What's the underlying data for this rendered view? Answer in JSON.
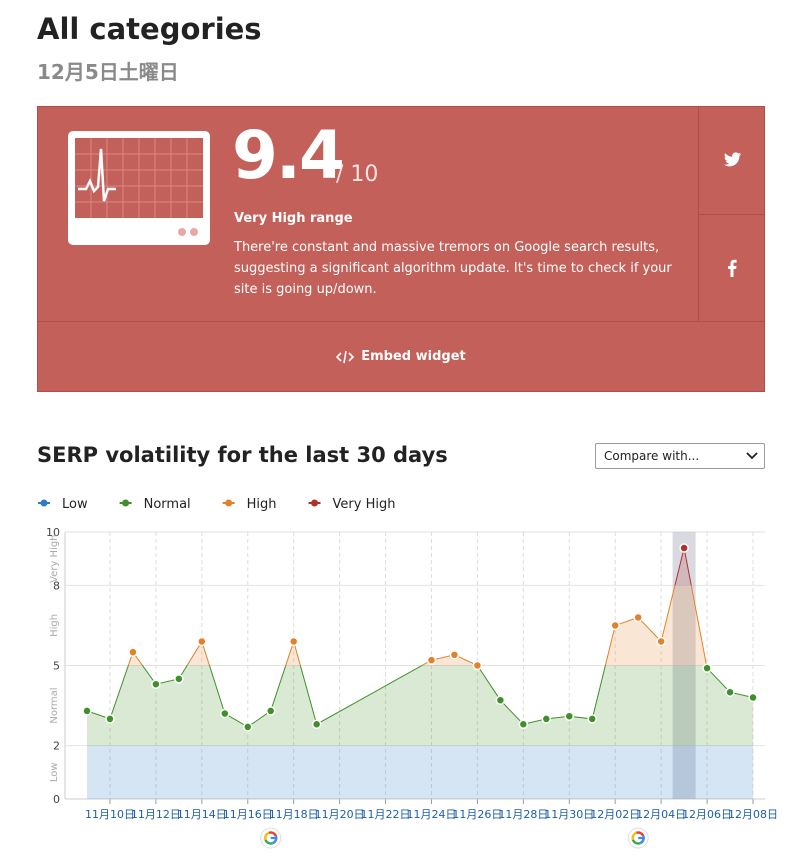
{
  "header": {
    "title": "All categories",
    "date": "12月5日土曜日"
  },
  "score_card": {
    "score": 9.4,
    "scale": "/ 10",
    "range": "Very High range",
    "description": "There're constant and massive tremors on Google search results, suggesting a significant algorithm update. It's time to check if your site is going up/down.",
    "embed": "Embed widget"
  },
  "compare_label": "Compare with...",
  "chart_data": {
    "type": "line",
    "title": "SERP volatility for the last 30 days",
    "levels": [
      {
        "name": "Low",
        "color": "#2f7dc4",
        "min": 0,
        "max": 2
      },
      {
        "name": "Normal",
        "color": "#3f8f2a",
        "min": 2,
        "max": 5
      },
      {
        "name": "High",
        "color": "#e0822a",
        "min": 5,
        "max": 8
      },
      {
        "name": "Very High",
        "color": "#b0302c",
        "min": 8,
        "max": 10
      }
    ],
    "x": [
      "11月9日",
      "11月10日",
      "11月11日",
      "11月12日",
      "11月13日",
      "11月14日",
      "11月15日",
      "11月16日",
      "11月17日",
      "11月18日",
      "11月19日",
      "11月24日",
      "11月25日",
      "11月26日",
      "11月27日",
      "11月28日",
      "11月29日",
      "11月30日",
      "12月1日",
      "12月2日",
      "12月3日",
      "12月4日",
      "12月5日",
      "12月6日",
      "12月7日",
      "12月8日"
    ],
    "values": [
      3.3,
      3.0,
      5.5,
      4.3,
      4.5,
      5.9,
      3.2,
      2.7,
      3.3,
      5.9,
      2.8,
      5.2,
      5.4,
      5.0,
      3.7,
      2.8,
      3.0,
      3.1,
      3.0,
      6.5,
      6.8,
      5.9,
      9.4,
      4.9,
      4.0,
      3.8
    ],
    "xlim": [
      "11月9日",
      "12月8日"
    ],
    "xticks": [
      "11月10日",
      "11月12日",
      "11月14日",
      "11月16日",
      "11月18日",
      "11月20日",
      "11月22日",
      "11月24日",
      "11月26日",
      "11月28日",
      "11月30日",
      "12月02日",
      "12月04日",
      "12月06日",
      "12月08日"
    ],
    "ylim": [
      0,
      10
    ],
    "yticks": [
      0,
      2,
      5,
      8,
      10
    ],
    "grid": true,
    "highlight": "12月5日",
    "event_dates": [
      "11月17日",
      "12月3日"
    ]
  }
}
